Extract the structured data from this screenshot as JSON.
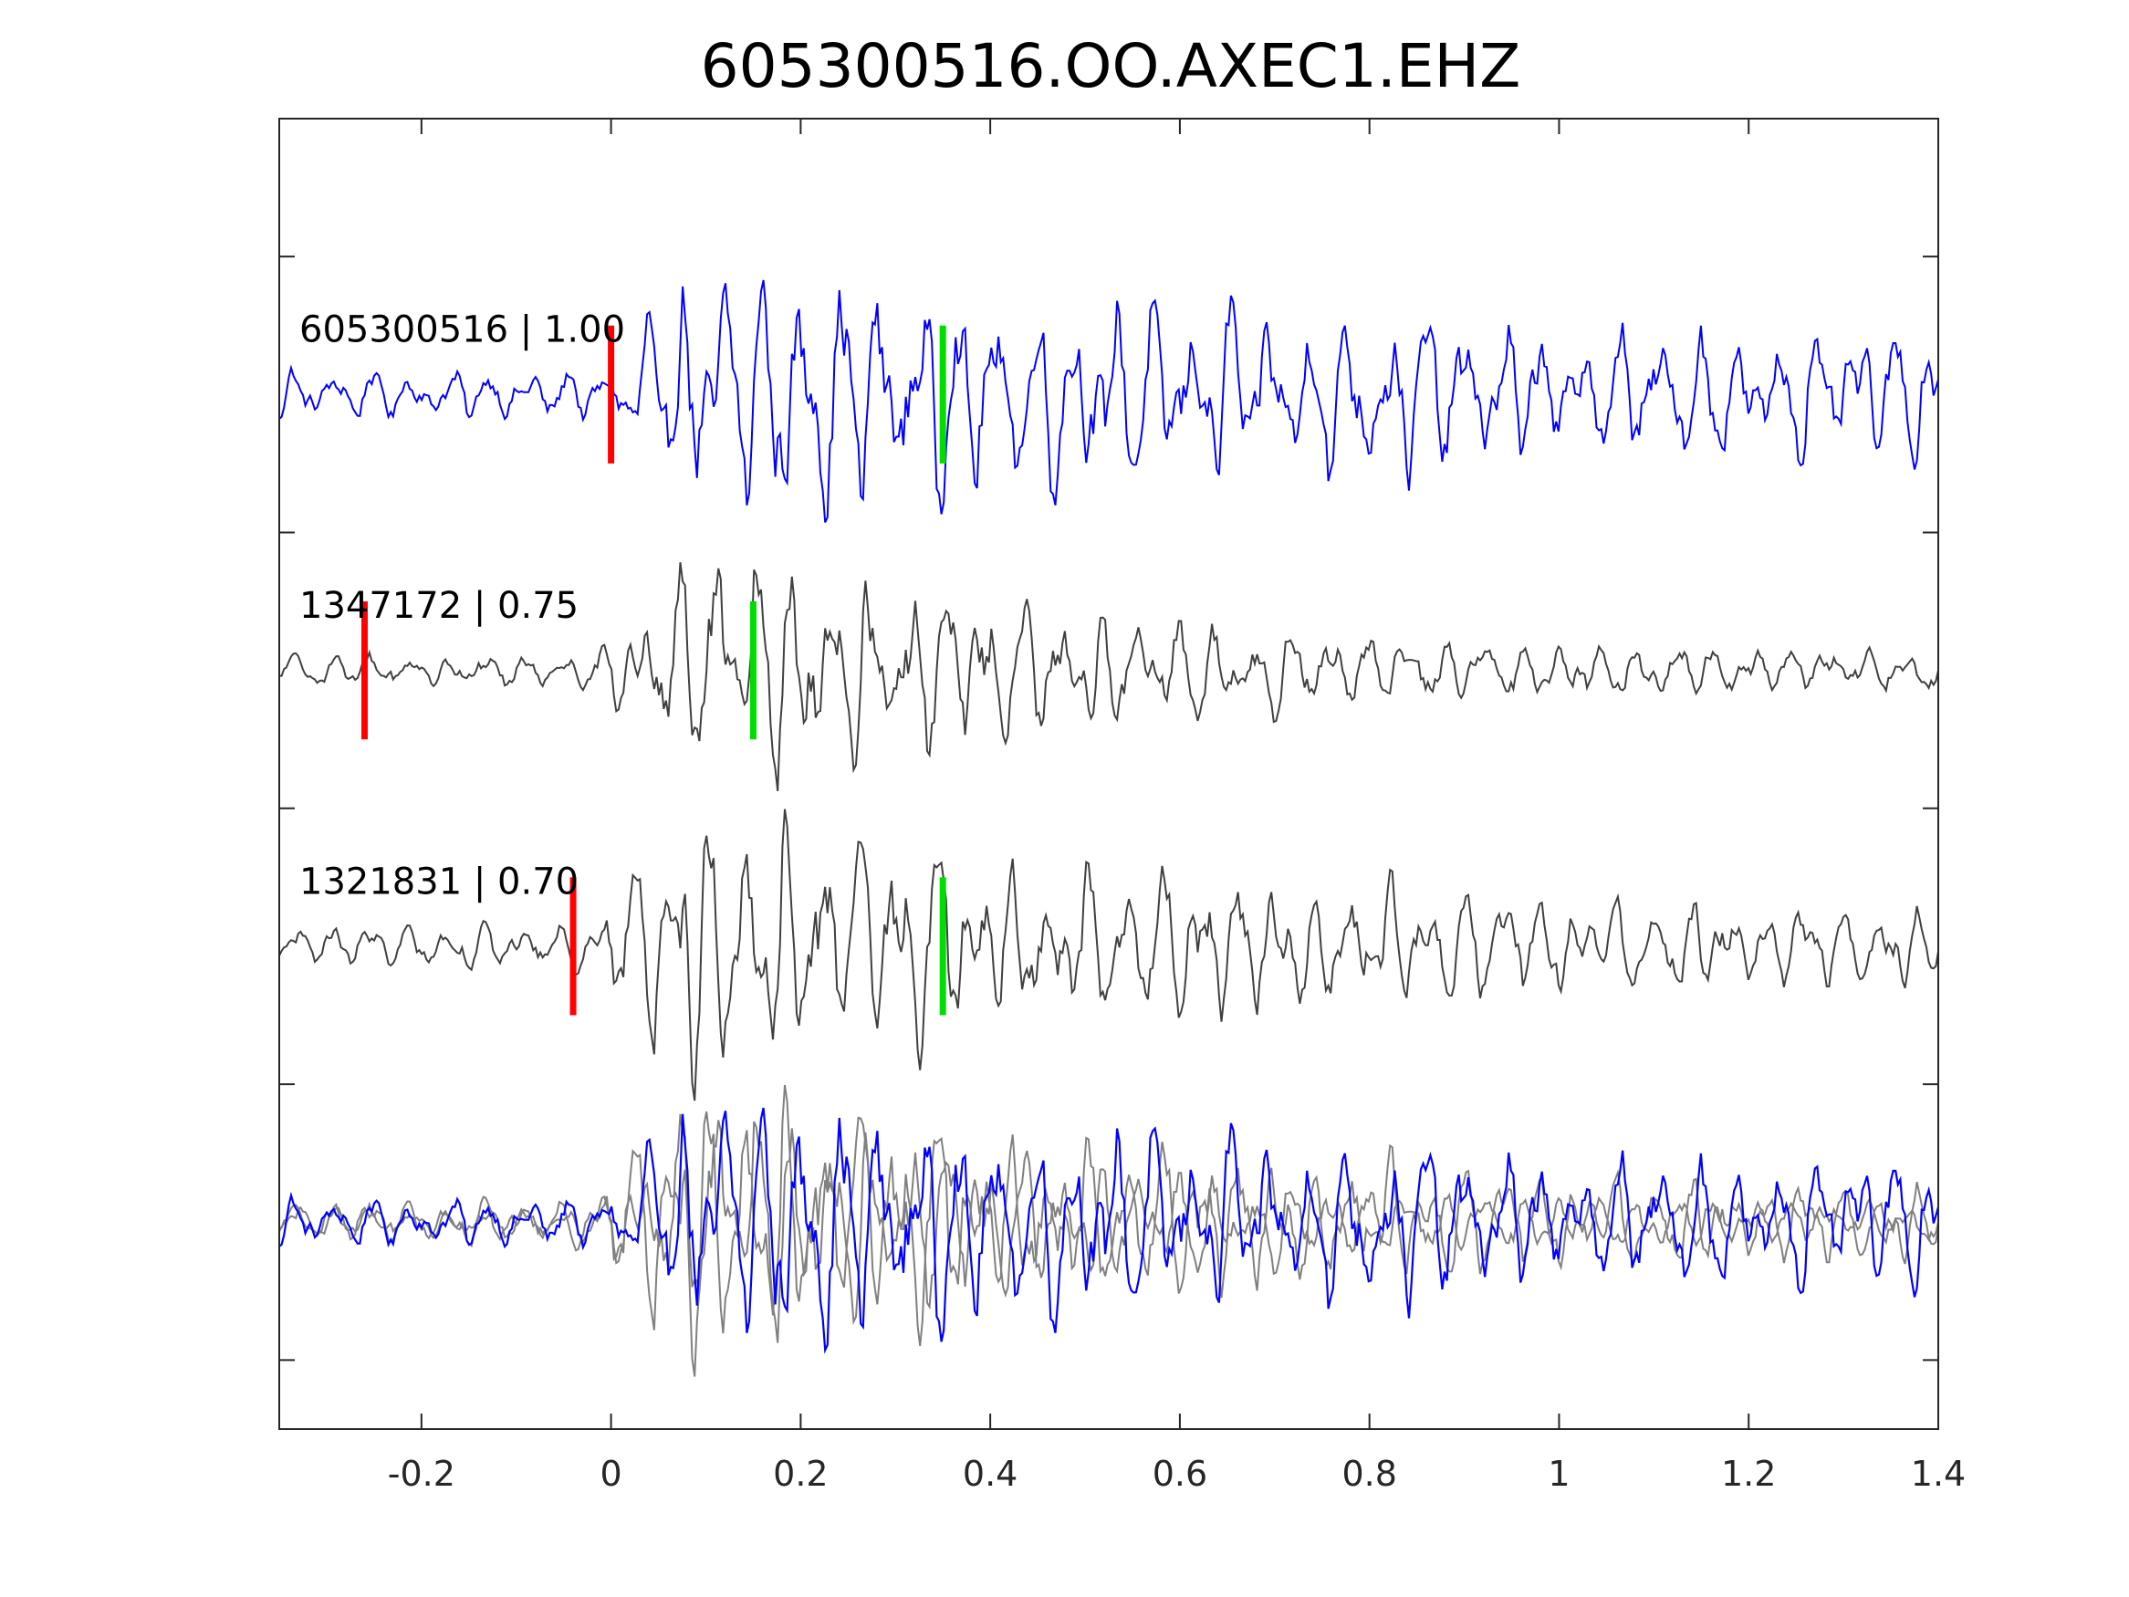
{
  "chart_data": {
    "type": "line",
    "title": "605300516.OO.AXEC1.EHZ",
    "xlabel": "",
    "ylabel": "",
    "xlim": [
      -0.35,
      1.4
    ],
    "x_ticks": [
      -0.2,
      0,
      0.2,
      0.4,
      0.6,
      0.8,
      1,
      1.2,
      1.4
    ],
    "x_tick_labels": [
      "-0.2",
      "0",
      "0.2",
      "0.4",
      "0.6",
      "0.8",
      "1",
      "1.2",
      "1.4"
    ],
    "ylim": [
      0,
      9.5
    ],
    "y_ticks": [
      0.5,
      2.5,
      4.5,
      6.5,
      8.5
    ],
    "y_tick_labels_visible": false,
    "grid": false,
    "colors": {
      "reference_trace": "#0000ff",
      "neighbor_trace": "#404040",
      "overlay_neighbor_trace": "#808080",
      "p_pick": "#ff0000",
      "s_pick": "#00dd00"
    },
    "traces": [
      {
        "label": "605300516 | 1.00",
        "baseline": 7.5,
        "color": "#0000ff",
        "p_pick": 0.0,
        "s_pick": 0.35,
        "signal_onset": -0.01,
        "peak_time": 0.09,
        "peak_amplitude": 0.95,
        "coda_decay": 0.9,
        "noise_amplitude": 0.22
      },
      {
        "label": "1347172 | 0.75",
        "baseline": 5.5,
        "color": "#404040",
        "p_pick": -0.26,
        "s_pick": 0.15,
        "signal_onset": -0.02,
        "peak_time": 0.12,
        "peak_amplitude": 1.05,
        "coda_decay": 2.8,
        "noise_amplitude": 0.16
      },
      {
        "label": "1321831 | 0.70",
        "baseline": 3.5,
        "color": "#404040",
        "p_pick": -0.04,
        "s_pick": 0.35,
        "signal_onset": -0.04,
        "peak_time": 0.09,
        "peak_amplitude": 1.05,
        "coda_decay": 1.6,
        "noise_amplitude": 0.18
      }
    ],
    "overlay": {
      "baseline": 1.5,
      "sources": [
        "605300516 | 1.00",
        "1347172 | 0.75",
        "1321831 | 0.70"
      ]
    }
  }
}
